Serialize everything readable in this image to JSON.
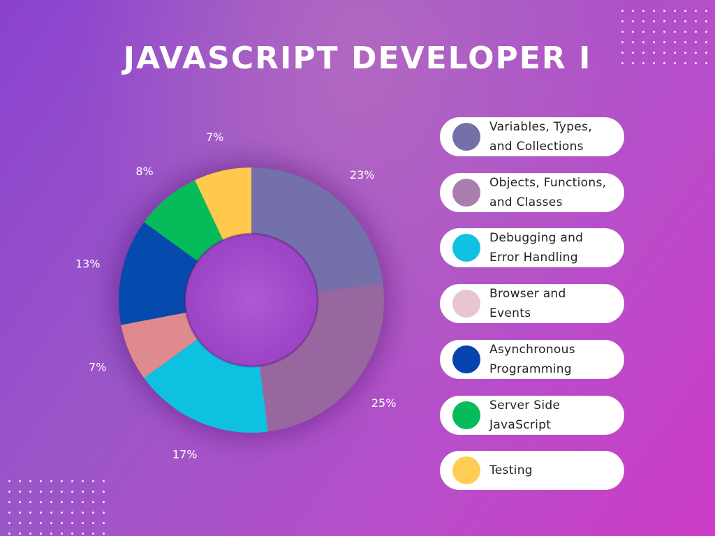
{
  "title": "JAVASCRIPT DEVELOPER I",
  "chart_data": {
    "type": "pie",
    "variant": "donut",
    "title": "JAVASCRIPT DEVELOPER I",
    "legend_position": "right",
    "slices": [
      {
        "name": "Variables, Types, and Collections",
        "legend_label": "Variables, Types,\nand Collections",
        "value": 23,
        "label": "23%",
        "color": "#7470aa"
      },
      {
        "name": "Objects, Functions, and Classes",
        "legend_label": "Objects, Functions,\nand Classes",
        "value": 25,
        "label": "25%",
        "color": "#98679f"
      },
      {
        "name": "Debugging and Error Handling",
        "legend_label": "Debugging and\nError Handling",
        "value": 17,
        "label": "17%",
        "color": "#0ec1e0"
      },
      {
        "name": "Browser and Events",
        "legend_label": "Browser and\nEvents",
        "value": 7,
        "label": "7%",
        "color": "#df8a8f"
      },
      {
        "name": "Asynchronous Programming",
        "legend_label": "Asynchronous\nProgramming",
        "value": 13,
        "label": "13%",
        "color": "#064aae"
      },
      {
        "name": "Server Side JavaScript",
        "legend_label": "Server Side\nJavaScript",
        "value": 8,
        "label": "8%",
        "color": "#05bb5a"
      },
      {
        "name": "Testing",
        "legend_label": "Testing",
        "value": 7,
        "label": "7%",
        "color": "#ffc94d"
      }
    ],
    "legend_swatch_colors": [
      "#7470aa",
      "#a97eaf",
      "#10c2e2",
      "#e8c5d0",
      "#0644ad",
      "#05bb5a",
      "#ffcc55"
    ]
  }
}
